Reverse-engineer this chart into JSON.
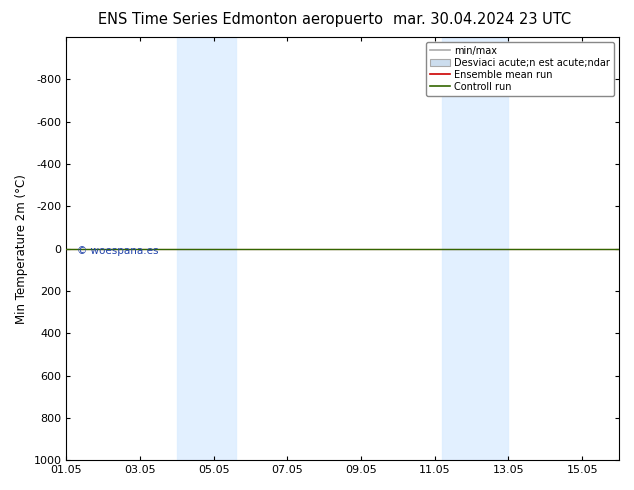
{
  "title_left": "ENS Time Series Edmonton aeropuerto",
  "title_right": "mar. 30.04.2024 23 UTC",
  "ylabel": "Min Temperature 2m (°C)",
  "ylim_top": -1000,
  "ylim_bottom": 1000,
  "yticks": [
    -800,
    -600,
    -400,
    -200,
    0,
    200,
    400,
    600,
    800,
    1000
  ],
  "xtick_labels": [
    "01.05",
    "03.05",
    "05.05",
    "07.05",
    "09.05",
    "11.05",
    "13.05",
    "15.05"
  ],
  "xtick_positions": [
    1,
    3,
    5,
    7,
    9,
    11,
    13,
    15
  ],
  "xlim": [
    1,
    16
  ],
  "shade_bands": [
    {
      "x_start": 4.0,
      "x_end": 5.6
    },
    {
      "x_start": 11.2,
      "x_end": 13.0
    }
  ],
  "shade_color": "#ddeeff",
  "shade_alpha": 0.85,
  "green_line_color": "#336600",
  "red_line_color": "#cc0000",
  "watermark": "© woespana.es",
  "watermark_color": "#2244aa",
  "legend_labels": [
    "min/max",
    "Desviaci acute;n est acute;ndar",
    "Ensemble mean run",
    "Controll run"
  ],
  "bg_color": "#ffffff",
  "title_fontsize": 10.5,
  "axis_fontsize": 8.5,
  "tick_fontsize": 8
}
